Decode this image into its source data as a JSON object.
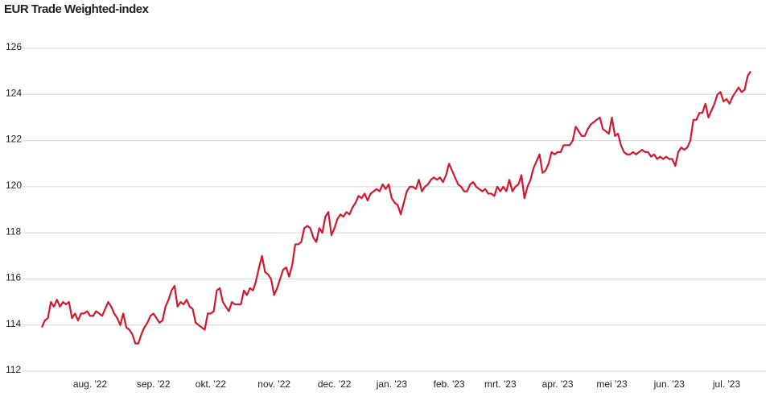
{
  "chart_data": {
    "type": "line",
    "title": "EUR Trade Weighted-index",
    "categories": [
      null,
      null,
      null,
      null,
      null,
      null,
      null,
      null,
      null,
      null,
      null,
      null,
      null,
      null,
      null,
      null,
      "aug. '22",
      null,
      null,
      null,
      null,
      null,
      null,
      null,
      null,
      null,
      null,
      null,
      null,
      null,
      null,
      null,
      null,
      null,
      null,
      null,
      null,
      "sep. '22",
      null,
      null,
      null,
      null,
      null,
      null,
      null,
      null,
      null,
      null,
      null,
      null,
      null,
      null,
      null,
      null,
      null,
      null,
      "okt. '22",
      null,
      null,
      null,
      null,
      null,
      null,
      null,
      null,
      null,
      null,
      null,
      null,
      null,
      null,
      null,
      null,
      null,
      null,
      null,
      null,
      "nov. '22",
      null,
      null,
      null,
      null,
      null,
      null,
      null,
      null,
      null,
      null,
      null,
      null,
      null,
      null,
      null,
      null,
      null,
      null,
      null,
      "dec. '22",
      null,
      null,
      null,
      null,
      null,
      null,
      null,
      null,
      null,
      null,
      null,
      null,
      null,
      null,
      null,
      null,
      null,
      null,
      "jan. '23",
      null,
      null,
      null,
      null,
      null,
      null,
      null,
      null,
      null,
      null,
      null,
      null,
      null,
      null,
      null,
      null,
      null,
      null,
      "feb. '23",
      null,
      null,
      null,
      null,
      null,
      null,
      null,
      null,
      null,
      null,
      null,
      null,
      null,
      null,
      null,
      null,
      "mrt. '23",
      null,
      null,
      null,
      null,
      null,
      null,
      null,
      null,
      null,
      null,
      null,
      null,
      null,
      null,
      null,
      null,
      null,
      null,
      "apr. '23",
      null,
      null,
      null,
      null,
      null,
      null,
      null,
      null,
      null,
      null,
      null,
      null,
      null,
      null,
      null,
      null,
      null,
      "mei '23",
      null,
      null,
      null,
      null,
      null,
      null,
      null,
      null,
      null,
      null,
      null,
      null,
      null,
      null,
      null,
      null,
      null,
      null,
      "jun. '23",
      null,
      null,
      null,
      null,
      null,
      null,
      null,
      null,
      null,
      null,
      null,
      null,
      null,
      null,
      null,
      null,
      null,
      null,
      "jul. '23",
      null,
      null,
      null,
      null,
      null,
      null,
      null,
      null
    ],
    "series": [
      {
        "name": "EUR Trade Weighted-index",
        "color": "#d3172e",
        "values": [
          113.9,
          114.2,
          114.3,
          115.0,
          114.8,
          115.1,
          114.8,
          115.0,
          114.9,
          115.0,
          114.3,
          114.5,
          114.2,
          114.5,
          114.5,
          114.6,
          114.4,
          114.4,
          114.6,
          114.5,
          114.4,
          114.7,
          115.0,
          114.8,
          114.5,
          114.3,
          114.0,
          114.5,
          113.9,
          113.8,
          113.6,
          113.2,
          113.2,
          113.6,
          113.9,
          114.1,
          114.4,
          114.5,
          114.3,
          114.1,
          114.2,
          114.8,
          115.1,
          115.5,
          115.7,
          114.8,
          115.0,
          114.9,
          115.1,
          114.8,
          114.7,
          114.1,
          114.0,
          113.9,
          113.8,
          114.5,
          114.5,
          114.6,
          115.5,
          115.6,
          115.0,
          114.8,
          114.6,
          115.0,
          114.9,
          114.9,
          114.9,
          115.5,
          115.3,
          115.6,
          115.5,
          115.9,
          116.5,
          117.0,
          116.3,
          116.2,
          116.0,
          115.3,
          115.6,
          116.0,
          116.4,
          116.5,
          116.1,
          116.6,
          117.5,
          117.5,
          117.6,
          118.2,
          118.3,
          118.2,
          117.8,
          117.6,
          118.2,
          118.0,
          118.7,
          118.9,
          117.9,
          118.2,
          118.6,
          118.8,
          118.7,
          118.9,
          118.8,
          119.1,
          119.3,
          119.6,
          119.5,
          119.7,
          119.4,
          119.7,
          119.8,
          119.9,
          119.8,
          120.1,
          119.9,
          120.1,
          119.5,
          119.3,
          119.2,
          118.8,
          119.3,
          119.8,
          120.0,
          120.0,
          119.9,
          120.3,
          119.8,
          120.0,
          120.1,
          120.3,
          120.4,
          120.3,
          120.4,
          120.2,
          120.5,
          121.0,
          120.7,
          120.4,
          120.1,
          120.0,
          119.8,
          119.8,
          120.1,
          120.2,
          120.0,
          119.9,
          119.8,
          119.9,
          119.7,
          119.7,
          119.6,
          120.0,
          119.8,
          120.0,
          119.8,
          120.3,
          119.8,
          120.0,
          120.1,
          120.5,
          119.5,
          120.0,
          120.3,
          120.8,
          121.1,
          121.4,
          120.6,
          120.7,
          121.0,
          121.5,
          121.4,
          121.5,
          121.5,
          121.8,
          121.8,
          121.8,
          122.0,
          122.6,
          122.4,
          122.2,
          122.2,
          122.5,
          122.7,
          122.8,
          122.9,
          123.0,
          122.5,
          122.4,
          122.3,
          123.0,
          122.2,
          122.3,
          121.8,
          121.5,
          121.4,
          121.4,
          121.5,
          121.4,
          121.5,
          121.6,
          121.5,
          121.5,
          121.3,
          121.4,
          121.2,
          121.3,
          121.2,
          121.3,
          121.2,
          121.2,
          120.9,
          121.5,
          121.7,
          121.6,
          121.7,
          122.0,
          122.9,
          122.9,
          123.2,
          123.2,
          123.6,
          123.0,
          123.3,
          123.6,
          124.0,
          124.1,
          123.7,
          123.8,
          123.6,
          123.9,
          124.1,
          124.3,
          124.1,
          124.2,
          124.8,
          125.0
        ]
      }
    ],
    "ylim": [
      112,
      126
    ],
    "yticks": [
      112,
      114,
      116,
      118,
      120,
      122,
      124,
      126
    ],
    "grid": true
  }
}
